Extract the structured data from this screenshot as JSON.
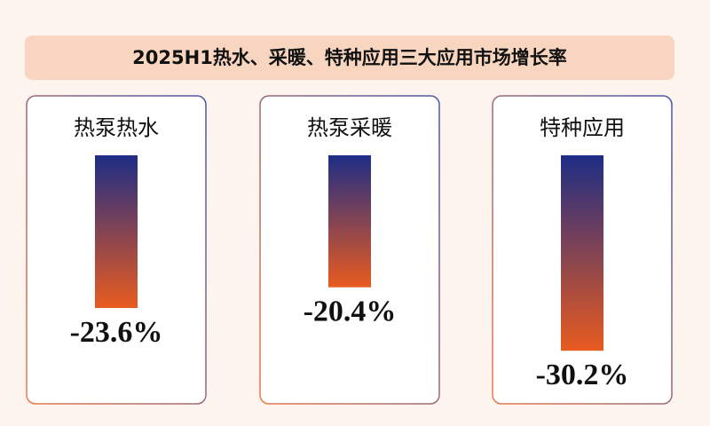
{
  "chart_data": {
    "type": "bar",
    "title": "2025H1热水、采暖、特种应用三大应用市场增长率",
    "categories": [
      "热泵热水",
      "热泵采暖",
      "特种应用"
    ],
    "values": [
      -23.6,
      -20.4,
      -30.2
    ],
    "value_labels": [
      "-23.6%",
      "-20.4%",
      "-30.2%"
    ],
    "colors": [
      "#1e2d86",
      "#e95b20"
    ]
  }
}
